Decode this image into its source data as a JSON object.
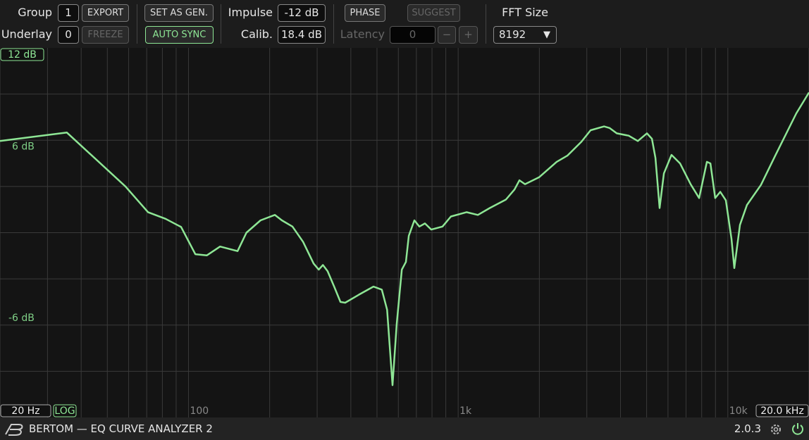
{
  "toolbar": {
    "group_label": "Group",
    "group_value": "1",
    "export": "EXPORT",
    "underlay_label": "Underlay",
    "underlay_value": "0",
    "freeze": "FREEZE",
    "set_as_gen": "SET AS GEN.",
    "auto_sync": "AUTO SYNC",
    "impulse_label": "Impulse",
    "impulse_value": "-12 dB",
    "calib_label": "Calib.",
    "calib_value": "18.4 dB",
    "phase": "PHASE",
    "suggest": "SUGGEST",
    "latency_label": "Latency",
    "latency_value": "0",
    "latency_minus": "−",
    "latency_plus": "+",
    "fft_label": "FFT Size",
    "fft_value": "8192"
  },
  "chart_data": {
    "type": "line",
    "x_scale": "log",
    "xlim": [
      20,
      20000
    ],
    "ylim": [
      -12,
      12
    ],
    "xticks": [
      100,
      {
        "value": 1000,
        "label": "1k"
      },
      {
        "value": 10000,
        "label": "10k"
      }
    ],
    "yticks": [
      {
        "value": 6,
        "label": "6 dB"
      },
      {
        "value": -6,
        "label": "-6 dB"
      }
    ],
    "xgrid": [
      20,
      30,
      40,
      50,
      60,
      70,
      80,
      90,
      100,
      200,
      300,
      400,
      500,
      600,
      700,
      800,
      900,
      1000,
      2000,
      3000,
      4000,
      5000,
      6000,
      7000,
      8000,
      9000,
      10000,
      20000
    ],
    "ygrid": [
      -9,
      -6,
      -3,
      0,
      3,
      6,
      9
    ],
    "range_labels": {
      "xmin": "20 Hz",
      "xmax": "20.0 kHz",
      "ymax": "12 dB"
    },
    "scale_button": "LOG",
    "x": [
      20,
      35.4,
      58.4,
      70.8,
      82.2,
      93.9,
      106,
      117,
      131,
      152,
      164,
      185,
      209,
      222,
      243,
      266,
      291,
      304,
      315,
      328,
      347,
      366,
      381,
      431,
      485,
      521,
      545,
      571,
      592,
      618,
      640,
      656,
      688,
      718,
      753,
      795,
      875,
      940,
      1074,
      1183,
      1310,
      1503,
      1618,
      1688,
      1770,
      1996,
      2318,
      2540,
      2864,
      3098,
      3476,
      3641,
      3874,
      4288,
      4636,
      5013,
      5229,
      5389,
      5586,
      5795,
      6183,
      6648,
      7278,
      7829,
      8364,
      8621,
      8979,
      9374,
      9835,
      10320,
      10570,
      11090,
      11780,
      13270,
      14990,
      17950,
      20000
    ],
    "series": [
      {
        "color": "#8ee695",
        "values": [
          5.95,
          6.5,
          3.0,
          1.33,
          0.9,
          0.37,
          -1.4,
          -1.47,
          -0.9,
          -1.2,
          0,
          0.8,
          1.15,
          0.8,
          0.4,
          -0.6,
          -2.0,
          -2.4,
          -2.1,
          -2.5,
          -3.5,
          -4.5,
          -4.55,
          -4.0,
          -3.5,
          -3.7,
          -5.0,
          -9.9,
          -5.9,
          -2.4,
          -1.9,
          -0.2,
          0.8,
          0.4,
          0.6,
          0.2,
          0.4,
          1.05,
          1.33,
          1.15,
          1.6,
          2.15,
          2.8,
          3.4,
          3.15,
          3.6,
          4.6,
          5.0,
          5.9,
          6.65,
          6.9,
          6.8,
          6.45,
          6.3,
          5.95,
          6.45,
          6.1,
          4.85,
          1.6,
          3.85,
          5.05,
          4.5,
          3.15,
          2.25,
          4.6,
          4.5,
          2.25,
          2.65,
          2.1,
          -0.4,
          -2.3,
          0.5,
          1.8,
          3.1,
          5.0,
          7.75,
          9.1
        ]
      }
    ]
  },
  "footer": {
    "title": "BERTOM — EQ CURVE ANALYZER 2",
    "version": "2.0.3"
  }
}
